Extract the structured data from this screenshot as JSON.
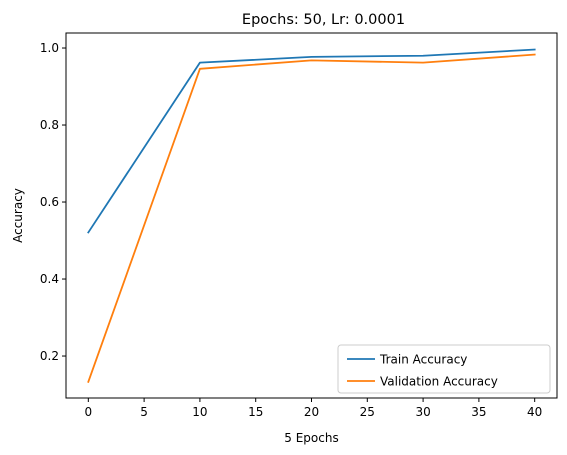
{
  "chart_data": {
    "type": "line",
    "title": "Epochs: 50, Lr: 0.0001",
    "xlabel": "5 Epochs",
    "ylabel": "Accuracy",
    "x": [
      0,
      10,
      20,
      30,
      40
    ],
    "series": [
      {
        "name": "Train Accuracy",
        "color": "#1f77b4",
        "values": [
          0.521,
          0.962,
          0.977,
          0.98,
          0.996
        ]
      },
      {
        "name": "Validation Accuracy",
        "color": "#ff7f0e",
        "values": [
          0.133,
          0.946,
          0.968,
          0.962,
          0.983
        ]
      }
    ],
    "xlim": [
      -2,
      42
    ],
    "ylim": [
      0.091,
      1.039
    ],
    "xticks": [
      0,
      5,
      10,
      15,
      20,
      25,
      30,
      35,
      40
    ],
    "yticks": [
      0.2,
      0.4,
      0.6,
      0.8,
      1.0
    ],
    "ytick_labels": [
      "0.2",
      "0.4",
      "0.6",
      "0.8",
      "1.0"
    ],
    "grid": false,
    "legend_position": "lower-right"
  }
}
